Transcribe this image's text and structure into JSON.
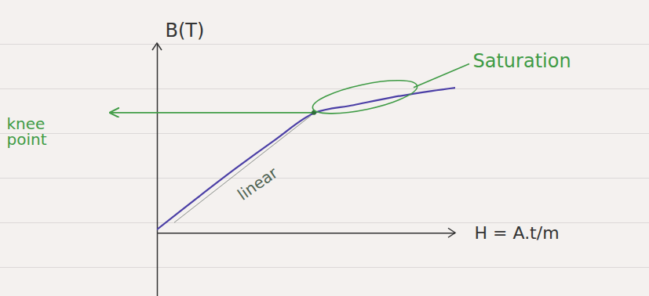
{
  "chart_data": {
    "type": "line",
    "x_label": "H = A.t/m",
    "y_label": "B(T)",
    "x": [
      0,
      5,
      10,
      15,
      20,
      25,
      30,
      35,
      38
    ],
    "values": [
      0.5,
      4.4,
      8.2,
      11.8,
      15.2,
      16.2,
      17.2,
      18.0,
      18.4
    ],
    "color": "#4b3fa6",
    "xlim": [
      0,
      38
    ],
    "ylim": [
      -8,
      24
    ],
    "xticks": [],
    "yticks": [],
    "tick_labels": false,
    "grid": false,
    "annotations": [
      {
        "text": "knee point",
        "x": 20,
        "y": 15.2,
        "color": "#3f9b45"
      },
      {
        "text": "Saturation",
        "x": 38,
        "y": 18.4,
        "color": "#3f9b45"
      },
      {
        "text": "linear",
        "x": 10,
        "y": 8.2,
        "color": "#4f6352"
      }
    ]
  }
}
